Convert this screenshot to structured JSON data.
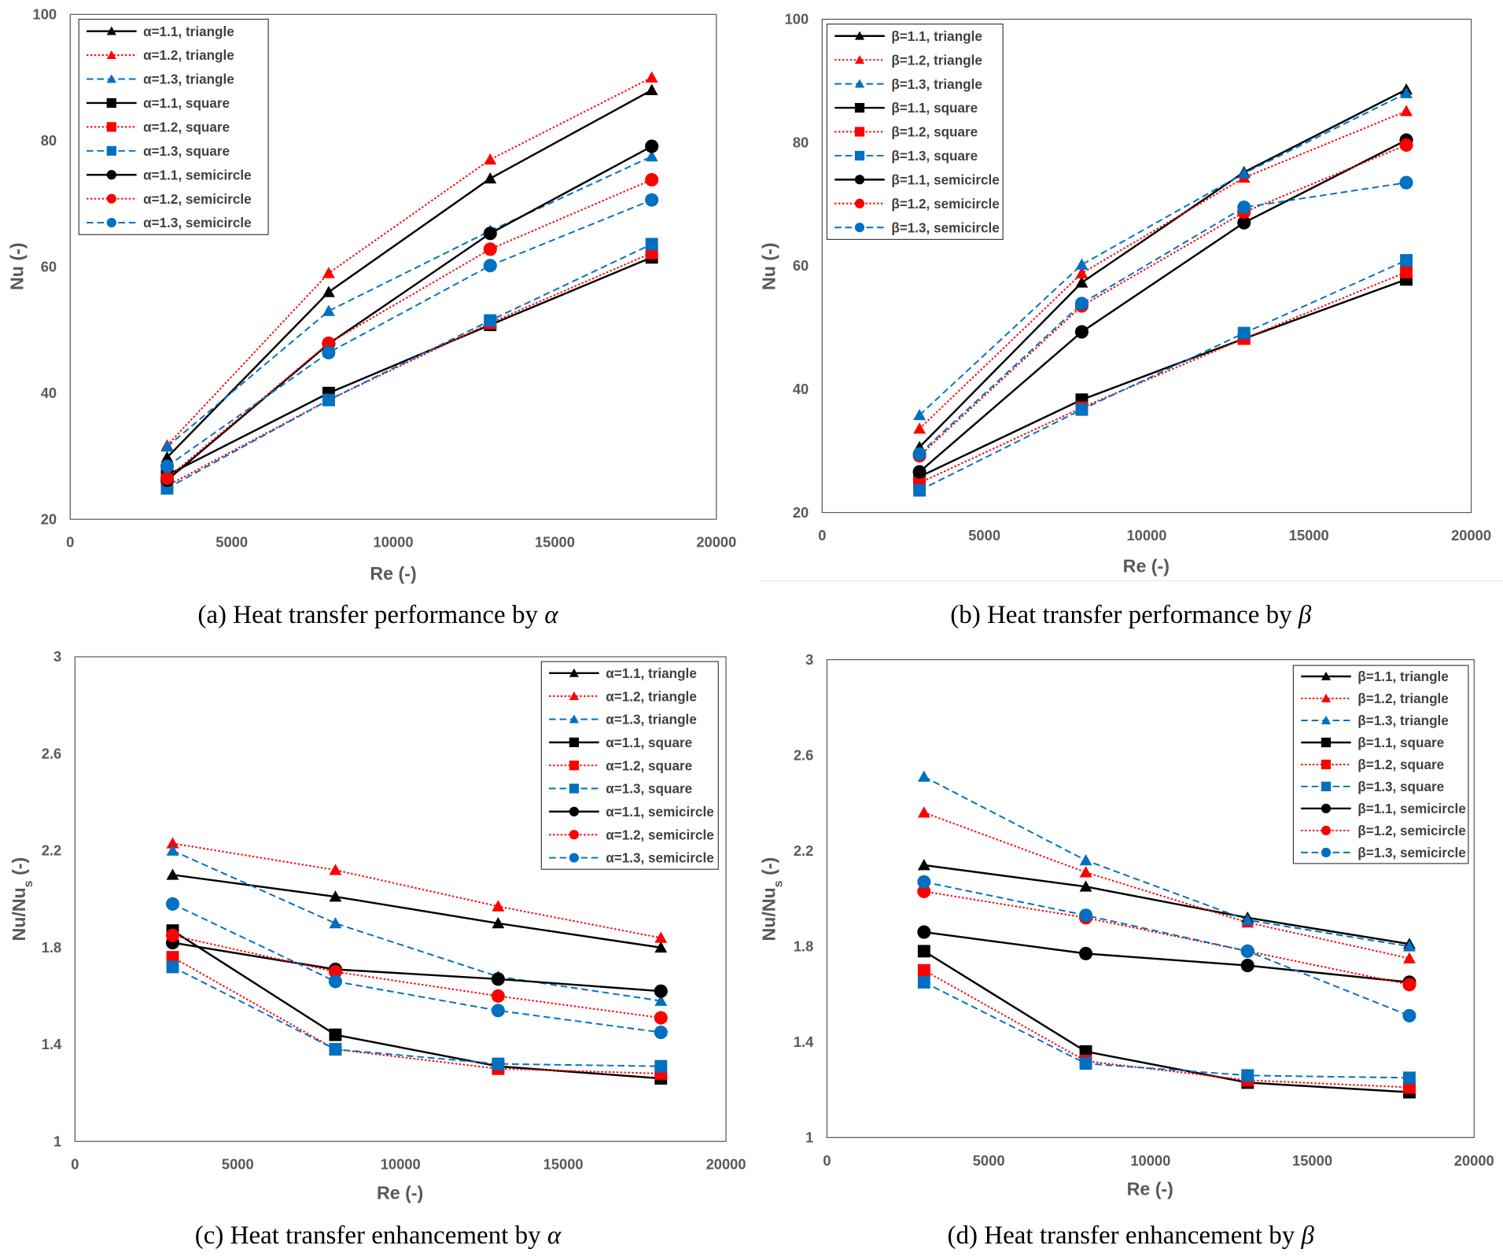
{
  "charts": [
    {
      "id": "a",
      "caption": {
        "text": "(a) Heat transfer performance by ",
        "symbol": "α"
      },
      "type": "line",
      "xlabel": "Re (-)",
      "ylabel": {
        "main": "Nu (-)",
        "sub": "",
        "suffix": ""
      },
      "xlim": [
        0,
        20000
      ],
      "ylim": [
        20,
        100
      ],
      "xticks": [
        "0",
        "5000",
        "10000",
        "15000",
        "20000"
      ],
      "yticks": [
        "20",
        "40",
        "60",
        "80",
        "100"
      ],
      "legend_position": "top-left",
      "x": [
        3000,
        8000,
        13000,
        18000
      ],
      "series": [
        {
          "name": "α=1.1, triangle",
          "values": [
            29.8,
            56.0,
            74.0,
            88.0
          ],
          "color": "#000000",
          "marker": "triangle",
          "style": "solid"
        },
        {
          "name": "α=1.2, triangle",
          "values": [
            31.7,
            59.0,
            77.0,
            90.0
          ],
          "color": "#FF0000",
          "marker": "triangle",
          "style": "dotted"
        },
        {
          "name": "α=1.3, triangle",
          "values": [
            31.5,
            53.0,
            65.7,
            77.5
          ],
          "color": "#0070C0",
          "marker": "triangle",
          "style": "dashed"
        },
        {
          "name": "α=1.1, square",
          "values": [
            27.0,
            40.0,
            50.8,
            61.5
          ],
          "color": "#000000",
          "marker": "square",
          "style": "solid"
        },
        {
          "name": "α=1.2, square",
          "values": [
            25.3,
            38.9,
            51.1,
            62.2
          ],
          "color": "#FF0000",
          "marker": "square",
          "style": "dotted"
        },
        {
          "name": "α=1.3, square",
          "values": [
            24.9,
            38.9,
            51.5,
            63.6
          ],
          "color": "#0070C0",
          "marker": "square",
          "style": "dashed"
        },
        {
          "name": "α=1.1, semicircle",
          "values": [
            26.2,
            47.8,
            65.3,
            79.1
          ],
          "color": "#000000",
          "marker": "circle",
          "style": "solid"
        },
        {
          "name": "α=1.2, semicircle",
          "values": [
            26.5,
            47.9,
            62.8,
            73.8
          ],
          "color": "#FF0000",
          "marker": "circle",
          "style": "dotted"
        },
        {
          "name": "α=1.3, semicircle",
          "values": [
            28.4,
            46.4,
            60.2,
            70.6
          ],
          "color": "#0070C0",
          "marker": "circle",
          "style": "dashed"
        }
      ]
    },
    {
      "id": "b",
      "caption": {
        "text": "(b) Heat transfer performance by ",
        "symbol": "β"
      },
      "type": "line",
      "xlabel": "Re (-)",
      "ylabel": {
        "main": "Nu (-)",
        "sub": "",
        "suffix": ""
      },
      "xlim": [
        0,
        20000
      ],
      "ylim": [
        20,
        100
      ],
      "xticks": [
        "0",
        "5000",
        "10000",
        "15000",
        "20000"
      ],
      "yticks": [
        "20",
        "40",
        "60",
        "80",
        "100"
      ],
      "legend_position": "top-left",
      "x": [
        3000,
        8000,
        13000,
        18000
      ],
      "series": [
        {
          "name": "β=1.1, triangle",
          "values": [
            30.6,
            57.3,
            75.2,
            88.6
          ],
          "color": "#000000",
          "marker": "triangle",
          "style": "solid"
        },
        {
          "name": "β=1.2, triangle",
          "values": [
            33.6,
            58.8,
            74.3,
            85.1
          ],
          "color": "#FF0000",
          "marker": "triangle",
          "style": "dotted"
        },
        {
          "name": "β=1.3, triangle",
          "values": [
            35.8,
            60.2,
            75.0,
            88.0
          ],
          "color": "#0070C0",
          "marker": "triangle",
          "style": "dashed"
        },
        {
          "name": "β=1.1, square",
          "values": [
            25.8,
            38.3,
            48.2,
            57.8
          ],
          "color": "#000000",
          "marker": "square",
          "style": "solid"
        },
        {
          "name": "β=1.2, square",
          "values": [
            24.8,
            37.0,
            48.2,
            59.0
          ],
          "color": "#FF0000",
          "marker": "square",
          "style": "dotted"
        },
        {
          "name": "β=1.3, square",
          "values": [
            23.6,
            36.7,
            49.1,
            60.9
          ],
          "color": "#0070C0",
          "marker": "square",
          "style": "dashed"
        },
        {
          "name": "β=1.1, semicircle",
          "values": [
            26.6,
            49.3,
            67.0,
            80.4
          ],
          "color": "#000000",
          "marker": "circle",
          "style": "solid"
        },
        {
          "name": "β=1.2, semicircle",
          "values": [
            29.2,
            53.5,
            68.7,
            79.6
          ],
          "color": "#FF0000",
          "marker": "circle",
          "style": "dotted"
        },
        {
          "name": "β=1.3, semicircle",
          "values": [
            29.5,
            53.9,
            69.5,
            73.5
          ],
          "color": "#0070C0",
          "marker": "circle",
          "style": "dashed"
        }
      ]
    },
    {
      "id": "c",
      "caption": {
        "text": "(c) Heat transfer enhancement by ",
        "symbol": "α"
      },
      "type": "line",
      "xlabel": "Re (-)",
      "ylabel": {
        "main": "Nu/Nu",
        "sub": "s",
        "suffix": " (-)"
      },
      "xlim": [
        0,
        20000
      ],
      "ylim": [
        1,
        3
      ],
      "xticks": [
        "0",
        "5000",
        "10000",
        "15000",
        "20000"
      ],
      "yticks": [
        "1",
        "1.4",
        "1.8",
        "2.2",
        "2.6",
        "3"
      ],
      "legend_position": "top-right",
      "x": [
        3000,
        8000,
        13000,
        18000
      ],
      "series": [
        {
          "name": "α=1.1, triangle",
          "values": [
            2.1,
            2.01,
            1.9,
            1.8
          ],
          "color": "#000000",
          "marker": "triangle",
          "style": "solid"
        },
        {
          "name": "α=1.2, triangle",
          "values": [
            2.23,
            2.12,
            1.97,
            1.84
          ],
          "color": "#FF0000",
          "marker": "triangle",
          "style": "dotted"
        },
        {
          "name": "α=1.3, triangle",
          "values": [
            2.2,
            1.9,
            1.68,
            1.58
          ],
          "color": "#0070C0",
          "marker": "triangle",
          "style": "dashed"
        },
        {
          "name": "α=1.1, square",
          "values": [
            1.87,
            1.44,
            1.31,
            1.26
          ],
          "color": "#000000",
          "marker": "square",
          "style": "solid"
        },
        {
          "name": "α=1.2, square",
          "values": [
            1.76,
            1.38,
            1.3,
            1.28
          ],
          "color": "#FF0000",
          "marker": "square",
          "style": "dotted"
        },
        {
          "name": "α=1.3, square",
          "values": [
            1.72,
            1.38,
            1.32,
            1.31
          ],
          "color": "#0070C0",
          "marker": "square",
          "style": "dashed"
        },
        {
          "name": "α=1.1, semicircle",
          "values": [
            1.82,
            1.71,
            1.67,
            1.62
          ],
          "color": "#000000",
          "marker": "circle",
          "style": "solid"
        },
        {
          "name": "α=1.2, semicircle",
          "values": [
            1.85,
            1.7,
            1.6,
            1.51
          ],
          "color": "#FF0000",
          "marker": "circle",
          "style": "dotted"
        },
        {
          "name": "α=1.3, semicircle",
          "values": [
            1.98,
            1.66,
            1.54,
            1.45
          ],
          "color": "#0070C0",
          "marker": "circle",
          "style": "dashed"
        }
      ]
    },
    {
      "id": "d",
      "caption": {
        "text": "(d) Heat transfer enhancement by ",
        "symbol": "β"
      },
      "type": "line",
      "xlabel": "Re (-)",
      "ylabel": {
        "main": "Nu/Nu",
        "sub": "s",
        "suffix": " (-)"
      },
      "xlim": [
        0,
        20000
      ],
      "ylim": [
        1,
        3
      ],
      "xticks": [
        "0",
        "5000",
        "10000",
        "15000",
        "20000"
      ],
      "yticks": [
        "1",
        "1.4",
        "1.8",
        "2.2",
        "2.6",
        "3"
      ],
      "legend_position": "top-right",
      "x": [
        3000,
        8000,
        13000,
        18000
      ],
      "series": [
        {
          "name": "β=1.1, triangle",
          "values": [
            2.14,
            2.05,
            1.92,
            1.81
          ],
          "color": "#000000",
          "marker": "triangle",
          "style": "solid"
        },
        {
          "name": "β=1.2, triangle",
          "values": [
            2.36,
            2.11,
            1.9,
            1.75
          ],
          "color": "#FF0000",
          "marker": "triangle",
          "style": "dotted"
        },
        {
          "name": "β=1.3, triangle",
          "values": [
            2.51,
            2.16,
            1.91,
            1.8
          ],
          "color": "#0070C0",
          "marker": "triangle",
          "style": "dashed"
        },
        {
          "name": "β=1.1, square",
          "values": [
            1.78,
            1.36,
            1.23,
            1.19
          ],
          "color": "#000000",
          "marker": "square",
          "style": "solid"
        },
        {
          "name": "β=1.2, square",
          "values": [
            1.7,
            1.32,
            1.24,
            1.21
          ],
          "color": "#FF0000",
          "marker": "square",
          "style": "dotted"
        },
        {
          "name": "β=1.3, square",
          "values": [
            1.65,
            1.31,
            1.26,
            1.25
          ],
          "color": "#0070C0",
          "marker": "square",
          "style": "dashed"
        },
        {
          "name": "β=1.1, semicircle",
          "values": [
            1.86,
            1.77,
            1.72,
            1.65
          ],
          "color": "#000000",
          "marker": "circle",
          "style": "solid"
        },
        {
          "name": "β=1.2, semicircle",
          "values": [
            2.03,
            1.92,
            1.78,
            1.64
          ],
          "color": "#FF0000",
          "marker": "circle",
          "style": "dotted"
        },
        {
          "name": "β=1.3, semicircle",
          "values": [
            2.07,
            1.93,
            1.78,
            1.51
          ],
          "color": "#0070C0",
          "marker": "circle",
          "style": "dashed"
        }
      ]
    }
  ]
}
